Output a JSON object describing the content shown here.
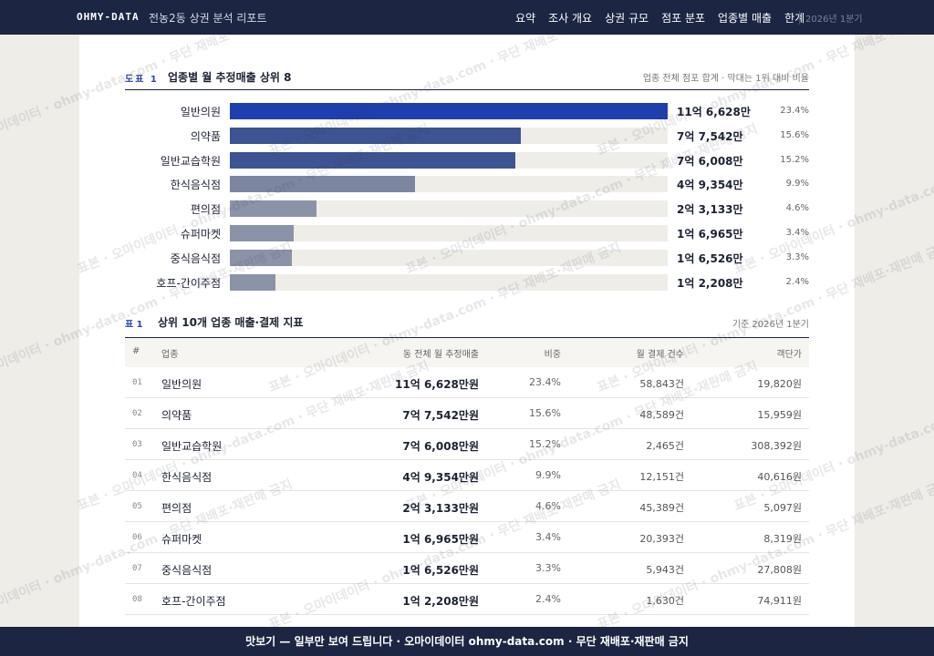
{
  "header": {
    "brand": "OHMY-DATA",
    "report": "전농2동 상권 분석 리포트",
    "nav": [
      "요약",
      "조사 개요",
      "상권 규모",
      "점포 분포",
      "업종별 매출",
      "한계"
    ],
    "period": "2026년 1분기"
  },
  "figure": {
    "label": "도표 1",
    "title": "업종별 월 추정매출 상위 8",
    "note": "업종 전체 점포 합계 · 막대는 1위 대비 비율",
    "bars": [
      {
        "name": "일반의원",
        "value": 116628,
        "value_label": "11억 6,628만",
        "share": "23.4%",
        "color": "#1f3fae"
      },
      {
        "name": "의약품",
        "value": 77542,
        "value_label": "7억 7,542만",
        "share": "15.6%",
        "color": "#3e5391"
      },
      {
        "name": "일반교습학원",
        "value": 76008,
        "value_label": "7억 6,008만",
        "share": "15.2%",
        "color": "#3e5391"
      },
      {
        "name": "한식음식점",
        "value": 49354,
        "value_label": "4억 9,354만",
        "share": "9.9%",
        "color": "#7c86a0"
      },
      {
        "name": "편의점",
        "value": 23133,
        "value_label": "2억 3,133만",
        "share": "4.6%",
        "color": "#8a93a8"
      },
      {
        "name": "슈퍼마켓",
        "value": 16965,
        "value_label": "1억 6,965만",
        "share": "3.4%",
        "color": "#8a93a8"
      },
      {
        "name": "중식음식점",
        "value": 16526,
        "value_label": "1억 6,526만",
        "share": "3.3%",
        "color": "#8a93a8"
      },
      {
        "name": "호프-간이주점",
        "value": 12208,
        "value_label": "1억 2,208만",
        "share": "2.4%",
        "color": "#8a93a8"
      }
    ]
  },
  "table": {
    "label": "표 1",
    "title": "상위 10개 업종 매출·결제 지표",
    "note": "기준 2026년 1분기",
    "columns": [
      "#",
      "업종",
      "동 전체 월 추정매출",
      "비중",
      "월 결제 건수",
      "객단가"
    ],
    "rows": [
      [
        "01",
        "일반의원",
        "11억 6,628만원",
        "23.4%",
        "58,843건",
        "19,820원"
      ],
      [
        "02",
        "의약품",
        "7억 7,542만원",
        "15.6%",
        "48,589건",
        "15,959원"
      ],
      [
        "03",
        "일반교습학원",
        "7억 6,008만원",
        "15.2%",
        "2,465건",
        "308,392원"
      ],
      [
        "04",
        "한식음식점",
        "4억 9,354만원",
        "9.9%",
        "12,151건",
        "40,616원"
      ],
      [
        "05",
        "편의점",
        "2억 3,133만원",
        "4.6%",
        "45,389건",
        "5,097원"
      ],
      [
        "06",
        "슈퍼마켓",
        "1억 6,965만원",
        "3.4%",
        "20,393건",
        "8,319원"
      ],
      [
        "07",
        "중식음식점",
        "1억 6,526만원",
        "3.3%",
        "5,943건",
        "27,808원"
      ],
      [
        "08",
        "호프-간이주점",
        "1억 2,208만원",
        "2.4%",
        "1,630건",
        "74,911원"
      ]
    ]
  },
  "watermark": "표본 · 오마이데이터 · ohmy-data.com · 무단 재배포·재판매 금지",
  "footer": "맛보기 — 일부만 보여 드립니다 · 오마이데이터 ohmy-data.com · 무단 재배포·재판매 금지"
}
